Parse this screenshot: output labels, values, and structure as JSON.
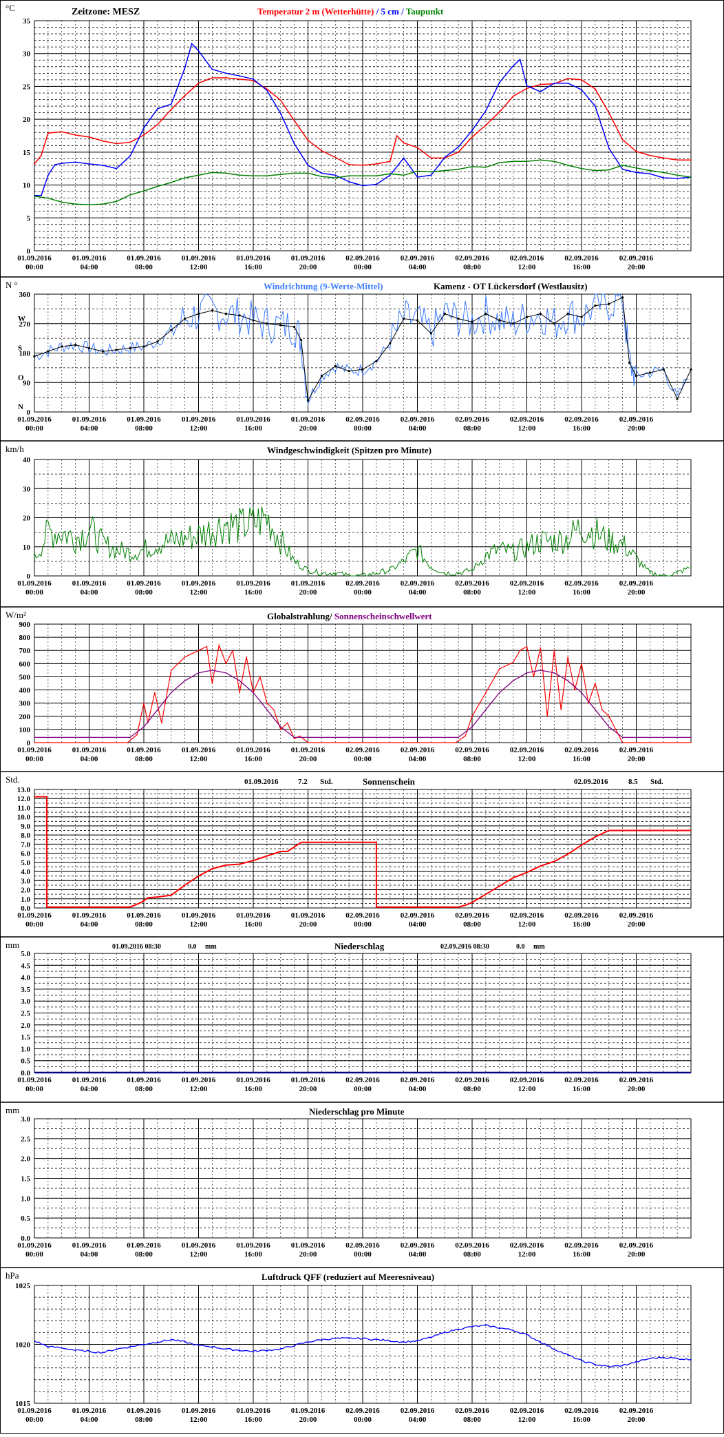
{
  "x_ticks": [
    [
      "01.09.2016",
      "00:00"
    ],
    [
      "01.09.2016",
      "04:00"
    ],
    [
      "01.09.2016",
      "08:00"
    ],
    [
      "01.09.2016",
      "12:00"
    ],
    [
      "01.09.2016",
      "16:00"
    ],
    [
      "01.09.2016",
      "20:00"
    ],
    [
      "02.09.2016",
      "00:00"
    ],
    [
      "02.09.2016",
      "04:00"
    ],
    [
      "02.09.2016",
      "08:00"
    ],
    [
      "02.09.2016",
      "12:00"
    ],
    [
      "02.09.2016",
      "16:00"
    ],
    [
      "02.09.2016",
      "20:00"
    ]
  ],
  "colors": {
    "temp2m": "#ff0000",
    "temp5cm": "#0000ff",
    "dewpoint": "#008000",
    "wind_dir": "#3b7bff",
    "wind_dir_avg": "#000000",
    "wind_speed": "#008000",
    "radiation": "#ff0000",
    "threshold": "#800080",
    "sunshine": "#ff0000",
    "precip": "#000080",
    "pressure": "#0000ff"
  },
  "chart_data": [
    {
      "id": "temperature",
      "type": "line",
      "unit_label": "°C",
      "timezone_label": "Zeitzone: MESZ",
      "title_parts": [
        "Temperatur 2 m (Wetterhütte)",
        " / ",
        "5 cm",
        " / ",
        "Taupunkt"
      ],
      "ylim": [
        0,
        35
      ],
      "yticks": [
        0,
        5,
        10,
        15,
        20,
        25,
        30,
        35
      ],
      "x_range_hours": [
        0,
        48
      ],
      "series": [
        {
          "key": "temp2m",
          "x": [
            0,
            0.5,
            1,
            2,
            3,
            4,
            5,
            6,
            7,
            8,
            9,
            10,
            11,
            12,
            13,
            14,
            15,
            16,
            17,
            18,
            19,
            20,
            21,
            22,
            23,
            24,
            25,
            26,
            26.5,
            27,
            28,
            29,
            30,
            31,
            32,
            33,
            34,
            35,
            36,
            37,
            38,
            39,
            40,
            41,
            42,
            43,
            44,
            45,
            46,
            47,
            48
          ],
          "values": [
            13.2,
            14.5,
            17.9,
            18.1,
            17.6,
            17.3,
            16.7,
            16.3,
            16.5,
            17.6,
            19.2,
            21.5,
            23.6,
            25.5,
            26.3,
            26.3,
            26.1,
            25.9,
            24.6,
            22.9,
            19.8,
            16.8,
            15.2,
            14.2,
            13.1,
            13.0,
            13.2,
            13.6,
            17.5,
            16.4,
            15.7,
            14.1,
            14.1,
            15.0,
            17.3,
            19.1,
            21.1,
            23.5,
            24.7,
            25.3,
            25.4,
            26.2,
            26.0,
            24.6,
            21.0,
            16.9,
            15.1,
            14.5,
            14.1,
            13.8,
            13.8
          ]
        },
        {
          "key": "temp5cm",
          "x": [
            0,
            0.5,
            1,
            1.5,
            2,
            3,
            4,
            5,
            6,
            7,
            7.5,
            8,
            9,
            10,
            11,
            11.5,
            12,
            13,
            14,
            15,
            16,
            17,
            18,
            19,
            20,
            21,
            22,
            23,
            24,
            25,
            26,
            27,
            28,
            29,
            30,
            31,
            32,
            33,
            34,
            35,
            35.5,
            36,
            37,
            38,
            39,
            40,
            41,
            42,
            43,
            44,
            45,
            46,
            47,
            48
          ],
          "values": [
            8.4,
            8.4,
            11.5,
            13.1,
            13.3,
            13.5,
            13.2,
            13.0,
            12.5,
            14.4,
            16.5,
            18.7,
            21.6,
            22.3,
            27.8,
            31.5,
            30.4,
            27.6,
            27.0,
            26.6,
            26.1,
            24.4,
            20.9,
            16.3,
            13.0,
            11.8,
            11.5,
            10.5,
            9.9,
            10.1,
            11.5,
            14.1,
            11.2,
            11.5,
            14.2,
            15.8,
            18.3,
            21.3,
            25.6,
            28.1,
            29.1,
            25.1,
            24.2,
            25.5,
            25.5,
            24.5,
            22.0,
            15.6,
            12.4,
            11.9,
            11.7,
            11.1,
            11.0,
            11.2
          ]
        },
        {
          "key": "dewpoint",
          "x": [
            0,
            1,
            2,
            3,
            4,
            5,
            6,
            7,
            8,
            9,
            10,
            11,
            12,
            13,
            14,
            15,
            16,
            17,
            18,
            19,
            20,
            21,
            22,
            23,
            24,
            25,
            26,
            27,
            28,
            29,
            30,
            31,
            32,
            33,
            34,
            35,
            36,
            37,
            38,
            39,
            40,
            41,
            42,
            43,
            44,
            45,
            46,
            47,
            48
          ],
          "values": [
            8.3,
            8.0,
            7.4,
            7.1,
            7.0,
            7.1,
            7.5,
            8.5,
            9.1,
            9.8,
            10.4,
            11.1,
            11.5,
            11.9,
            11.8,
            11.5,
            11.4,
            11.4,
            11.6,
            11.8,
            11.8,
            11.3,
            11.1,
            11.4,
            11.4,
            11.4,
            11.7,
            11.5,
            12.1,
            12.0,
            12.2,
            12.4,
            12.8,
            12.7,
            13.4,
            13.6,
            13.6,
            13.8,
            13.6,
            13.0,
            12.5,
            12.2,
            12.3,
            13.0,
            12.6,
            12.2,
            11.9,
            11.5,
            11.2
          ]
        }
      ]
    },
    {
      "id": "wind_direction",
      "type": "scatter",
      "unit_label": "N °",
      "title": "Windrichtung (9-Werte-Mittel)",
      "station": "Kamenz - OT Lückersdorf (Westlausitz)",
      "ylim": [
        0,
        360
      ],
      "yticks": [
        0,
        90,
        180,
        270,
        360
      ],
      "compass_labels": [
        "N",
        "O",
        "S",
        "W"
      ],
      "x_range_hours": [
        0,
        48
      ],
      "x": [
        0,
        1,
        2,
        3,
        4,
        5,
        6,
        7,
        8,
        9,
        10,
        11,
        12,
        13,
        14,
        15,
        16,
        17,
        18,
        19,
        19.5,
        20,
        21,
        22,
        23,
        24,
        25,
        26,
        27,
        28,
        29,
        30,
        31,
        32,
        33,
        34,
        35,
        36,
        37,
        38,
        39,
        40,
        41,
        42,
        43,
        43.5,
        44,
        45,
        46,
        47,
        48
      ],
      "values": [
        170,
        185,
        200,
        205,
        195,
        185,
        190,
        195,
        200,
        215,
        250,
        285,
        300,
        310,
        300,
        295,
        280,
        270,
        265,
        260,
        220,
        35,
        110,
        140,
        125,
        130,
        155,
        210,
        285,
        280,
        240,
        300,
        285,
        275,
        300,
        280,
        270,
        290,
        300,
        270,
        300,
        290,
        325,
        330,
        350,
        150,
        110,
        120,
        130,
        40,
        130
      ]
    },
    {
      "id": "wind_speed",
      "type": "line",
      "unit_label": "km/h",
      "title": "Windgeschwindigkeit (Spitzen pro Minute)",
      "ylim": [
        0,
        40
      ],
      "yticks": [
        0,
        10,
        20,
        30,
        40
      ],
      "x_range_hours": [
        0,
        48
      ],
      "x": [
        0,
        1,
        2,
        3,
        4,
        5,
        6,
        7,
        8,
        9,
        10,
        11,
        12,
        13,
        14,
        15,
        16,
        17,
        18,
        19,
        20,
        21,
        22,
        23,
        24,
        25,
        26,
        27,
        28,
        29,
        30,
        31,
        32,
        33,
        34,
        35,
        36,
        37,
        38,
        39,
        40,
        41,
        42,
        43,
        44,
        45,
        46,
        47,
        48
      ],
      "values": [
        6,
        15,
        15,
        13,
        16,
        11,
        9,
        8,
        9,
        11,
        12,
        13,
        14,
        16,
        18,
        17,
        18,
        20,
        12,
        5,
        2,
        1,
        1,
        0,
        0,
        1,
        2,
        5,
        9,
        3,
        1,
        1,
        2,
        7,
        9,
        8,
        10,
        12,
        12,
        13,
        17,
        15,
        12,
        11,
        6,
        1,
        0,
        1,
        3
      ]
    },
    {
      "id": "radiation",
      "type": "line",
      "unit_label": "W/m²",
      "title_parts": [
        "Globalstrahlung/",
        " Sonnenscheinschwellwert"
      ],
      "ylim": [
        0,
        900
      ],
      "yticks": [
        0,
        100,
        200,
        300,
        400,
        500,
        600,
        700,
        800,
        900
      ],
      "x_range_hours": [
        0,
        48
      ],
      "series": [
        {
          "key": "radiation",
          "x": [
            0,
            6.8,
            7.5,
            8,
            8.3,
            8.8,
            9.3,
            10,
            11,
            12,
            12.6,
            13,
            13.5,
            14,
            14.5,
            15,
            15.5,
            16,
            16.5,
            17,
            17.5,
            18,
            18.5,
            19,
            19.4,
            20,
            30.8,
            31.5,
            32,
            33,
            34,
            35,
            35.5,
            36,
            36.5,
            37,
            37.5,
            38,
            38.5,
            39,
            39.5,
            40,
            40.5,
            41,
            41.5,
            42,
            42.5,
            43,
            48
          ],
          "values": [
            0,
            0,
            60,
            300,
            150,
            380,
            150,
            550,
            650,
            700,
            730,
            450,
            740,
            600,
            700,
            380,
            650,
            380,
            500,
            300,
            250,
            100,
            150,
            30,
            50,
            0,
            0,
            50,
            200,
            380,
            560,
            610,
            700,
            730,
            500,
            720,
            200,
            700,
            250,
            650,
            400,
            600,
            300,
            450,
            250,
            200,
            100,
            0,
            0
          ]
        },
        {
          "key": "threshold",
          "x": [
            0,
            7,
            8,
            9,
            10,
            11,
            12,
            13,
            14,
            15,
            16,
            17,
            18,
            19,
            20,
            31,
            32,
            33,
            34,
            35,
            36,
            37,
            38,
            39,
            40,
            41,
            42,
            43,
            48
          ],
          "values": [
            40,
            40,
            120,
            250,
            380,
            470,
            530,
            550,
            530,
            470,
            380,
            250,
            120,
            40,
            40,
            40,
            120,
            250,
            380,
            470,
            530,
            550,
            530,
            470,
            380,
            250,
            120,
            40,
            40
          ]
        }
      ]
    },
    {
      "id": "sunshine",
      "type": "line",
      "unit_label": "Std.",
      "title": "Sonnenschein",
      "totals": [
        {
          "date": "01.09.2016",
          "value": "7.2",
          "unit": "Std."
        },
        {
          "date": "02.09.2016",
          "value": "8.5",
          "unit": "Std."
        }
      ],
      "ylim": [
        0,
        13
      ],
      "yticks": [
        "0.0",
        "1.0",
        "2.0",
        "3.0",
        "4.0",
        "5.0",
        "6.0",
        "7.0",
        "8.0",
        "9.0",
        "10.0",
        "11.0",
        "12.0",
        "13.0"
      ],
      "x_range_hours": [
        0,
        48
      ],
      "x": [
        0,
        0.9,
        0.9,
        7,
        7.8,
        8.3,
        9,
        10,
        11,
        12,
        13,
        14,
        15,
        16,
        17,
        18,
        18.5,
        19,
        19.5,
        20,
        21,
        22,
        23,
        24,
        25,
        25,
        31,
        31.5,
        32,
        33,
        34,
        35,
        36,
        37,
        38,
        39,
        40,
        41,
        42,
        43,
        48
      ],
      "values": [
        12.2,
        12.2,
        0.1,
        0.1,
        0.6,
        1.1,
        1.2,
        1.4,
        2.5,
        3.5,
        4.3,
        4.7,
        4.8,
        5.2,
        5.7,
        6.2,
        6.2,
        6.7,
        7.2,
        7.2,
        7.2,
        7.2,
        7.2,
        7.2,
        7.2,
        0.1,
        0.1,
        0.3,
        0.6,
        1.5,
        2.4,
        3.3,
        3.9,
        4.6,
        5.1,
        5.9,
        6.9,
        7.8,
        8.5,
        8.5,
        8.5
      ]
    },
    {
      "id": "precipitation",
      "type": "line",
      "unit_label": "mm",
      "title": "Niederschlag",
      "totals": [
        {
          "date": "01.09.2016 08:30",
          "value": "0.0",
          "unit": "mm"
        },
        {
          "date": "02.09.2016 08:30",
          "value": "0.0",
          "unit": "mm"
        }
      ],
      "ylim": [
        0,
        5
      ],
      "yticks": [
        "0.0",
        "0.5",
        "1.0",
        "1.5",
        "2.0",
        "2.5",
        "3.0",
        "3.5",
        "4.0",
        "4.5",
        "5.0"
      ],
      "x_range_hours": [
        0,
        48
      ],
      "x": [
        0,
        48
      ],
      "values": [
        0,
        0
      ]
    },
    {
      "id": "precip_per_minute",
      "type": "line",
      "unit_label": "mm",
      "title": "Niederschlag pro Minute",
      "ylim": [
        0,
        3
      ],
      "yticks": [
        "0.0",
        "0.5",
        "1.0",
        "1.5",
        "2.0",
        "2.5",
        "3.0"
      ],
      "x_range_hours": [
        0,
        48
      ],
      "x": [],
      "values": []
    },
    {
      "id": "pressure",
      "type": "line",
      "unit_label": "hPa",
      "title": "Luftdruck QFF (reduziert auf Meeresniveau)",
      "ylim": [
        1015,
        1025
      ],
      "yticks": [
        1015,
        1020,
        1025
      ],
      "x_range_hours": [
        0,
        48
      ],
      "x": [
        0,
        1,
        2,
        3,
        4,
        5,
        6,
        7,
        8,
        9,
        10,
        11,
        12,
        13,
        14,
        15,
        16,
        17,
        18,
        19,
        20,
        21,
        22,
        23,
        24,
        25,
        26,
        27,
        28,
        29,
        30,
        31,
        32,
        33,
        34,
        35,
        36,
        37,
        38,
        39,
        40,
        41,
        42,
        43,
        44,
        45,
        46,
        47,
        48
      ],
      "values": [
        1020.3,
        1019.8,
        1019.7,
        1019.5,
        1019.4,
        1019.3,
        1019.6,
        1019.8,
        1020.0,
        1020.2,
        1020.4,
        1020.2,
        1019.9,
        1019.8,
        1019.6,
        1019.5,
        1019.4,
        1019.5,
        1019.6,
        1019.9,
        1020.2,
        1020.4,
        1020.5,
        1020.5,
        1020.5,
        1020.4,
        1020.3,
        1020.2,
        1020.3,
        1020.6,
        1021.0,
        1021.3,
        1021.5,
        1021.6,
        1021.4,
        1021.2,
        1020.8,
        1020.2,
        1019.6,
        1019.1,
        1018.6,
        1018.3,
        1018.1,
        1018.2,
        1018.5,
        1018.8,
        1018.9,
        1018.8,
        1018.7
      ]
    }
  ]
}
